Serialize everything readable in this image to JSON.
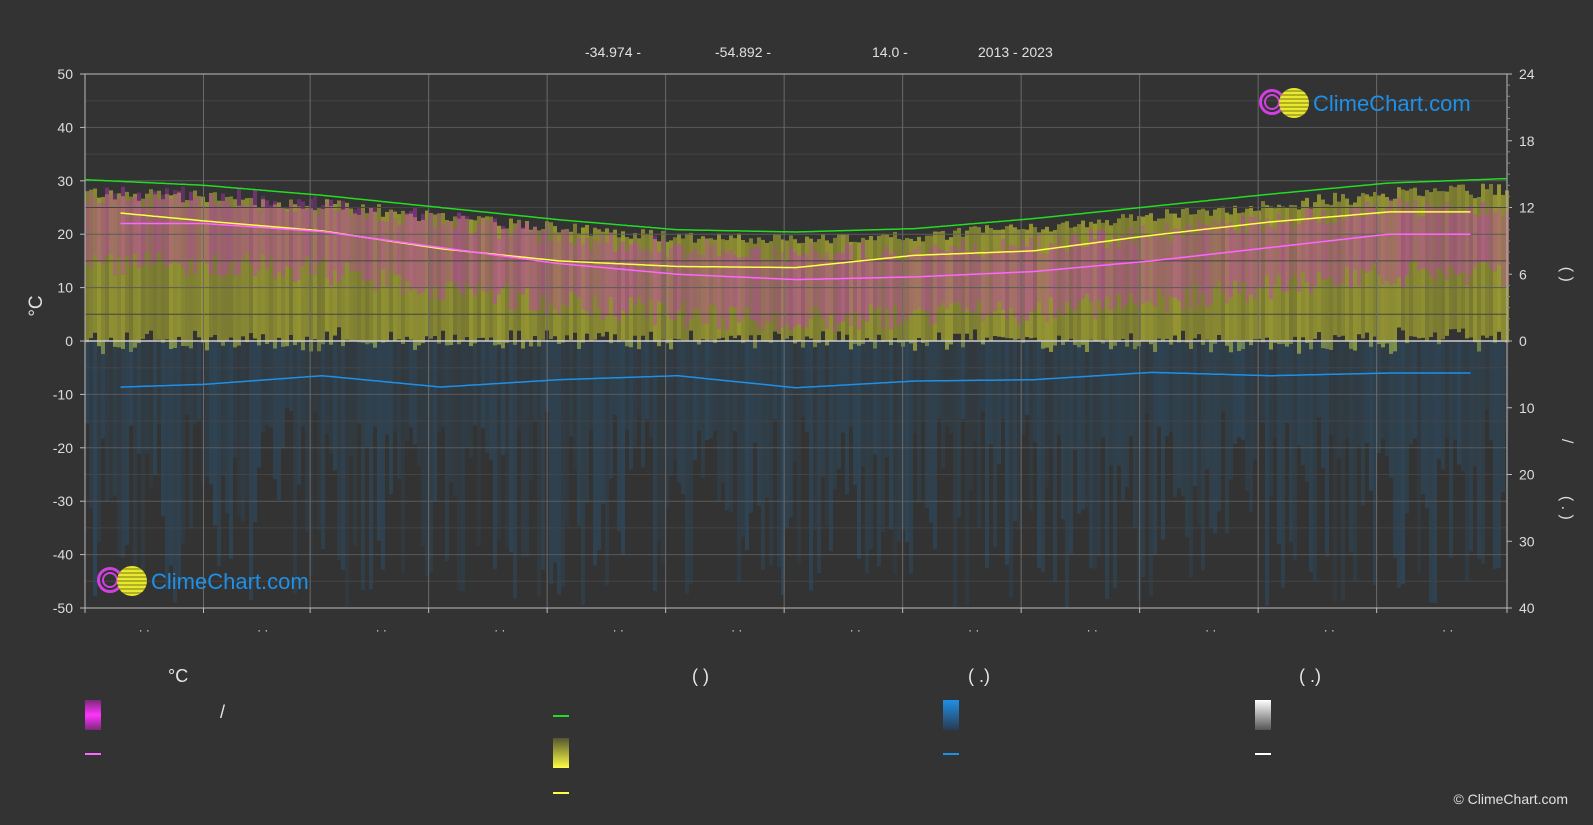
{
  "header": {
    "lat": "-34.974 -",
    "lon": "-54.892 -",
    "elev": "14.0 -",
    "years": "2013 - 2023"
  },
  "axes": {
    "left_label": "°C",
    "left_ticks": [
      "50",
      "40",
      "30",
      "20",
      "10",
      "0",
      "-10",
      "-20",
      "-30",
      "-40",
      "-50"
    ],
    "right_top_ticks": [
      "24",
      "18",
      "12",
      "6",
      "0"
    ],
    "right_bottom_ticks": [
      "10",
      "20",
      "30",
      "40"
    ],
    "right_label_top": "(  )",
    "right_label_mid": "/",
    "right_label_bottom": "( .  )",
    "month_ticks": [
      "· ·",
      "· ·",
      "· ·",
      "· ·",
      "· ·",
      "· ·",
      "· ·",
      "· ·",
      "· ·",
      "· ·",
      "· ·",
      "· ·"
    ]
  },
  "logo": {
    "text": "ClimeChart.com"
  },
  "legend": {
    "col1_header": "°C",
    "col1_sep": "/",
    "col2_header": "(            )",
    "col3_header": "(   .)",
    "col4_header": "(   .)"
  },
  "copyright": "© ClimeChart.com",
  "colors": {
    "background": "#333333",
    "daylight": "#22dd22",
    "sunshine": "#ffff44",
    "max_temp": "#ff66ff",
    "precip": "#1e90e8",
    "temp_band": "#cc33cc",
    "sun_band": "#cccc33",
    "grid": "#5a5a5a"
  },
  "chart_data": {
    "type": "line",
    "x_unit": "month",
    "left_axis": {
      "label": "°C",
      "ylim": [
        -50,
        50
      ]
    },
    "right_axis_top": {
      "ylim": [
        0,
        24
      ],
      "unit": "hours"
    },
    "right_axis_bottom": {
      "ylim": [
        0,
        40
      ],
      "unit": "mm",
      "inverted": true
    },
    "series": [
      {
        "key": "daylight",
        "axis": "right_top",
        "x": [
          0,
          1,
          2,
          3,
          4,
          5,
          6,
          7,
          8,
          9,
          10,
          11,
          12
        ],
        "values": [
          14.5,
          14.0,
          13.1,
          12.0,
          10.9,
          10.0,
          9.8,
          10.1,
          11.0,
          12.1,
          13.2,
          14.2,
          14.6
        ]
      },
      {
        "key": "sunshine",
        "axis": "right_top",
        "x": [
          0.3,
          1,
          2,
          3,
          4,
          5,
          6,
          7,
          8,
          9,
          10,
          11,
          11.7
        ],
        "values": [
          11.5,
          10.8,
          9.9,
          8.3,
          7.2,
          6.7,
          6.6,
          7.7,
          8.1,
          9.5,
          10.7,
          11.6,
          11.6
        ]
      },
      {
        "key": "max_temp",
        "axis": "left",
        "x": [
          0.3,
          1,
          2,
          3,
          4,
          5,
          6,
          7,
          8,
          9,
          10,
          11,
          11.7
        ],
        "values": [
          22.0,
          22.0,
          20.5,
          17.5,
          14.5,
          12.5,
          11.5,
          12.0,
          13.0,
          15.0,
          17.5,
          20.0,
          20.0
        ]
      },
      {
        "key": "precip",
        "axis": "right_bottom",
        "x": [
          0.3,
          1,
          2,
          3,
          4,
          5,
          6,
          7,
          8,
          9,
          10,
          11,
          11.7
        ],
        "values": [
          6.9,
          6.5,
          5.2,
          6.9,
          5.8,
          5.2,
          7.0,
          6.0,
          5.8,
          4.7,
          5.2,
          4.8,
          4.8
        ]
      }
    ],
    "grid": true
  }
}
